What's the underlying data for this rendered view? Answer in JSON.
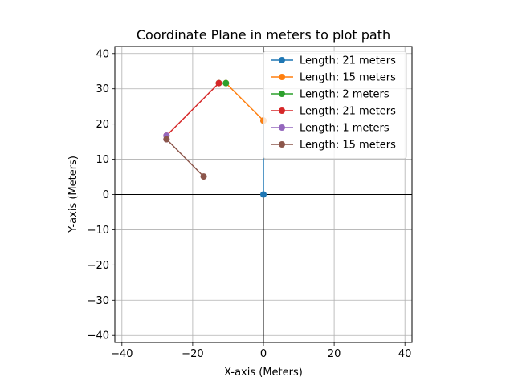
{
  "chart_data": {
    "type": "line",
    "title": "Coordinate Plane in meters to plot path",
    "xlabel": "X-axis (Meters)",
    "ylabel": "Y-axis (Meters)",
    "xlim": [
      -42,
      42
    ],
    "ylim": [
      -42,
      42
    ],
    "xticks": [
      -40,
      -20,
      0,
      20,
      40
    ],
    "yticks": [
      -40,
      -30,
      -20,
      -10,
      0,
      10,
      20,
      30,
      40
    ],
    "grid": true,
    "legend_position": "top-right",
    "origin_axes": true,
    "series": [
      {
        "name": "Length: 21 meters",
        "color": "#1f77b4",
        "x": [
          0,
          0
        ],
        "y": [
          0,
          21
        ]
      },
      {
        "name": "Length: 15 meters",
        "color": "#ff7f0e",
        "x": [
          0,
          -10.6
        ],
        "y": [
          21,
          31.6
        ]
      },
      {
        "name": "Length: 2 meters",
        "color": "#2ca02c",
        "x": [
          -10.6,
          -12.6
        ],
        "y": [
          31.6,
          31.6
        ]
      },
      {
        "name": "Length: 21 meters",
        "color": "#d62728",
        "x": [
          -12.6,
          -27.4
        ],
        "y": [
          31.6,
          16.7
        ]
      },
      {
        "name": "Length: 1 meters",
        "color": "#9467bd",
        "x": [
          -27.4,
          -27.4
        ],
        "y": [
          16.7,
          15.7
        ]
      },
      {
        "name": "Length: 15 meters",
        "color": "#8c564b",
        "x": [
          -27.4,
          -16.9
        ],
        "y": [
          15.7,
          5.1
        ]
      }
    ]
  }
}
